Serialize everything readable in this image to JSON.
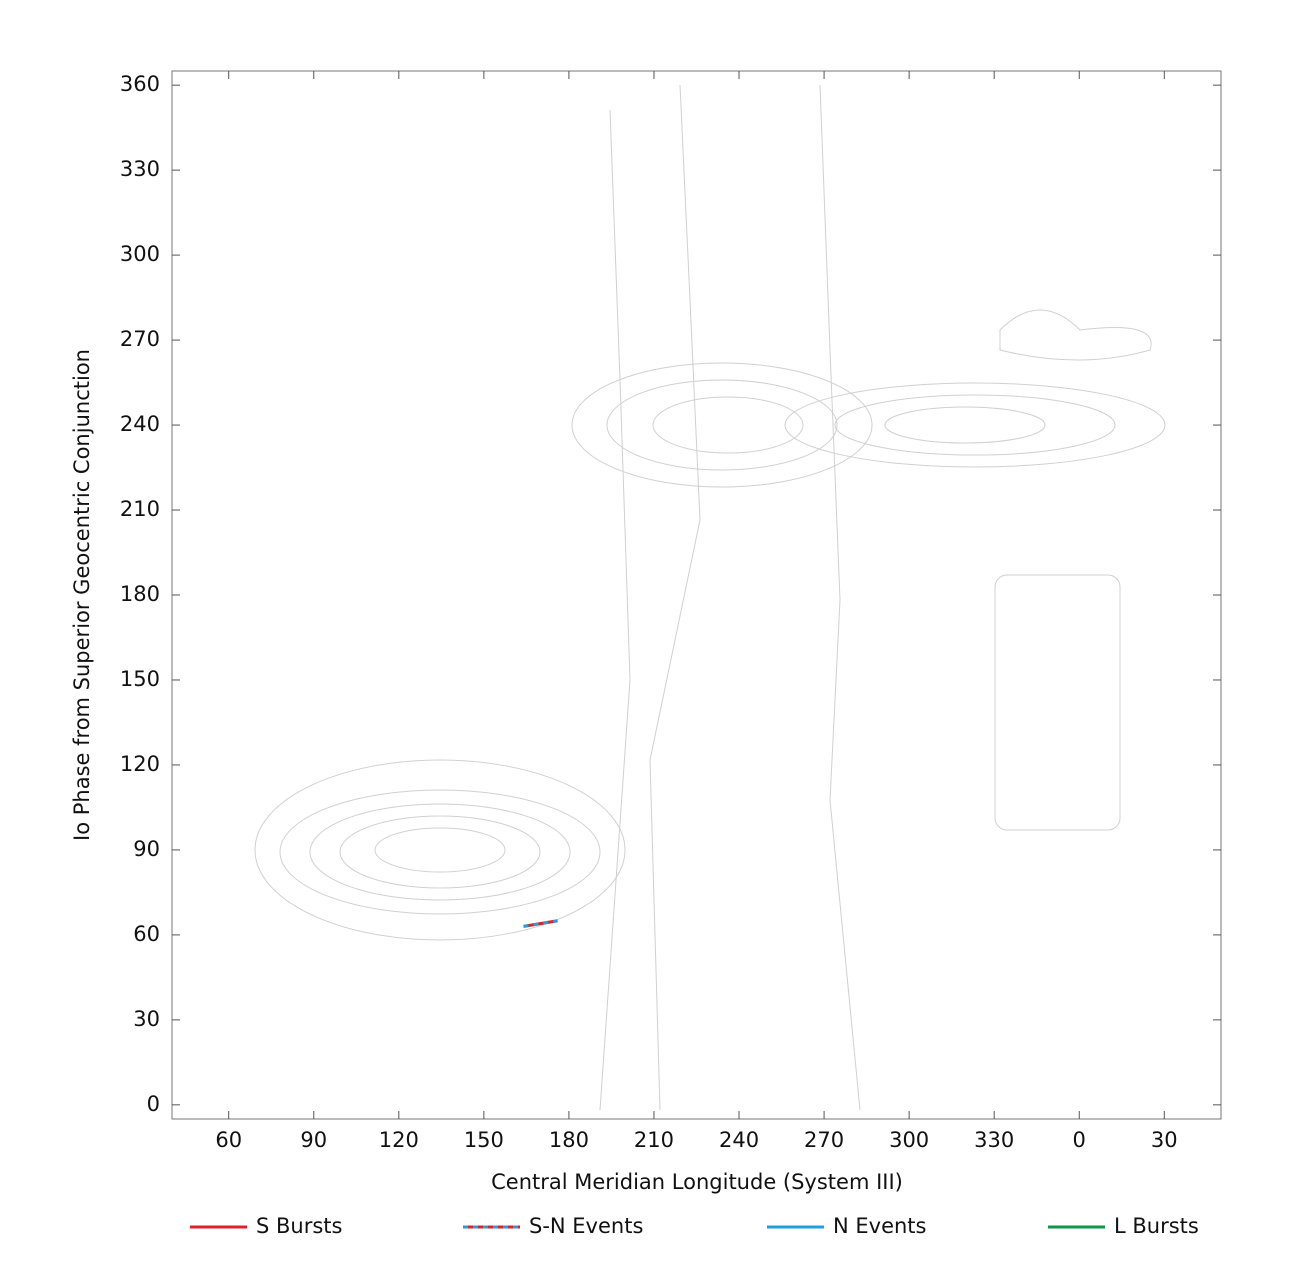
{
  "chart_data": {
    "type": "line",
    "xlabel": "Central Meridian Longitude (System III)",
    "ylabel": "Io Phase from Superior Geocentric Conjunction",
    "xlim": [
      40,
      410
    ],
    "xticks": [
      60,
      90,
      120,
      150,
      180,
      210,
      240,
      270,
      300,
      330,
      {
        "value": 360,
        "label": "0"
      },
      {
        "value": 390,
        "label": "30"
      }
    ],
    "ylim": [
      -5,
      365
    ],
    "yticks": [
      0,
      30,
      60,
      90,
      120,
      150,
      180,
      210,
      240,
      270,
      300,
      330,
      360
    ],
    "legend": "bottom",
    "series": [
      {
        "name": "S Bursts",
        "color": "#e0202a",
        "x": [],
        "values": []
      },
      {
        "name": "S-N Events",
        "color": "#e0202a",
        "color2": "#1ea0e0",
        "x": [
          164,
          176
        ],
        "values": [
          63,
          65
        ]
      },
      {
        "name": "N Events",
        "color": "#1ea0e0",
        "x": [],
        "values": []
      },
      {
        "name": "L Bursts",
        "color": "#10964a",
        "x": [],
        "values": []
      }
    ]
  }
}
